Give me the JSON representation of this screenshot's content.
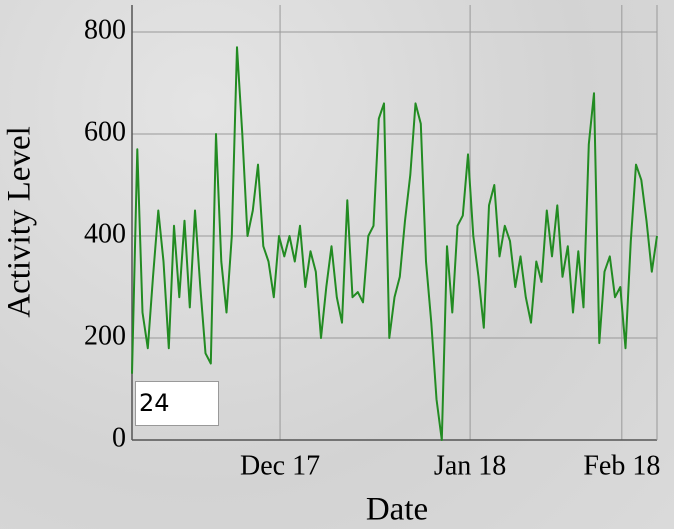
{
  "chart_data": {
    "type": "line",
    "x_label": "Date",
    "y_label": "Activity Level",
    "roll_period": 24,
    "color": "#228b22",
    "x": [
      0,
      1,
      2,
      3,
      4,
      5,
      6,
      7,
      8,
      9,
      10,
      11,
      12,
      13,
      14,
      15,
      16,
      17,
      18,
      19,
      20,
      21,
      22,
      23,
      24,
      25,
      26,
      27,
      28,
      29,
      30,
      31,
      32,
      33,
      34,
      35,
      36,
      37,
      38,
      39,
      40,
      41,
      42,
      43,
      44,
      45,
      46,
      47,
      48,
      49,
      50,
      51,
      52,
      53,
      54,
      55,
      56,
      57,
      58,
      59,
      60,
      61,
      62,
      63,
      64,
      65,
      66,
      67,
      68,
      69,
      70,
      71,
      72,
      73,
      74,
      75,
      76,
      77,
      78,
      79,
      80,
      81,
      82,
      83,
      84,
      85,
      86,
      87,
      88,
      89,
      90,
      91,
      92,
      93,
      94,
      95,
      96,
      97,
      98,
      99,
      100
    ],
    "values": [
      130,
      570,
      250,
      180,
      320,
      450,
      350,
      180,
      420,
      280,
      430,
      260,
      450,
      300,
      170,
      150,
      600,
      350,
      250,
      400,
      770,
      600,
      400,
      450,
      540,
      380,
      350,
      280,
      400,
      360,
      400,
      350,
      420,
      300,
      370,
      330,
      200,
      300,
      380,
      280,
      230,
      470,
      280,
      290,
      270,
      400,
      420,
      630,
      660,
      200,
      280,
      320,
      430,
      520,
      660,
      620,
      350,
      230,
      80,
      0,
      380,
      250,
      420,
      440,
      560,
      400,
      320,
      220,
      460,
      500,
      360,
      420,
      390,
      300,
      360,
      280,
      230,
      350,
      310,
      450,
      360,
      460,
      320,
      380,
      250,
      370,
      260,
      580,
      680,
      190,
      330,
      360,
      280,
      300,
      180,
      390,
      540,
      510,
      430,
      330,
      400
    ],
    "xlim": [
      0,
      100
    ],
    "xticks": [
      {
        "value": 28.2,
        "label": "Dec 17"
      },
      {
        "value": 64.4,
        "label": "Jan 18"
      },
      {
        "value": 93.3,
        "label": "Feb 18"
      }
    ],
    "ylim": [
      0,
      853
    ],
    "yticks": [
      0,
      200,
      400,
      600,
      800
    ],
    "grid": true
  }
}
